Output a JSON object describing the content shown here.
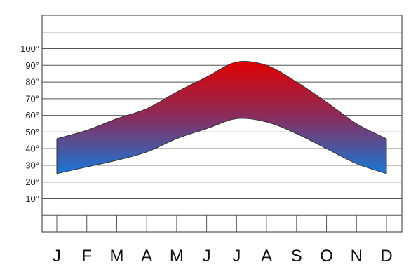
{
  "chart_data": {
    "type": "area",
    "title": "",
    "xlabel": "",
    "ylabel": "",
    "categories": [
      "J",
      "F",
      "M",
      "A",
      "M",
      "J",
      "J",
      "A",
      "S",
      "O",
      "N",
      "D"
    ],
    "series": [
      {
        "values": [
          46,
          51,
          58,
          64,
          74,
          83,
          92,
          90,
          80,
          68,
          55,
          46
        ]
      },
      {
        "values": [
          25,
          29,
          33,
          38,
          46,
          52,
          58,
          56,
          49,
          40,
          31,
          25
        ]
      }
    ],
    "yticks": [
      "10°",
      "20°",
      "30°",
      "40°",
      "50°",
      "60°",
      "70°",
      "80°",
      "90°",
      "100°"
    ],
    "ylim": [
      -10,
      120
    ],
    "grid": true,
    "legend": "none",
    "colors": {
      "high": "#e00000",
      "mid": "#8c2b59",
      "low": "#1976d6",
      "grid": "#555555",
      "edge": "#333333"
    }
  }
}
